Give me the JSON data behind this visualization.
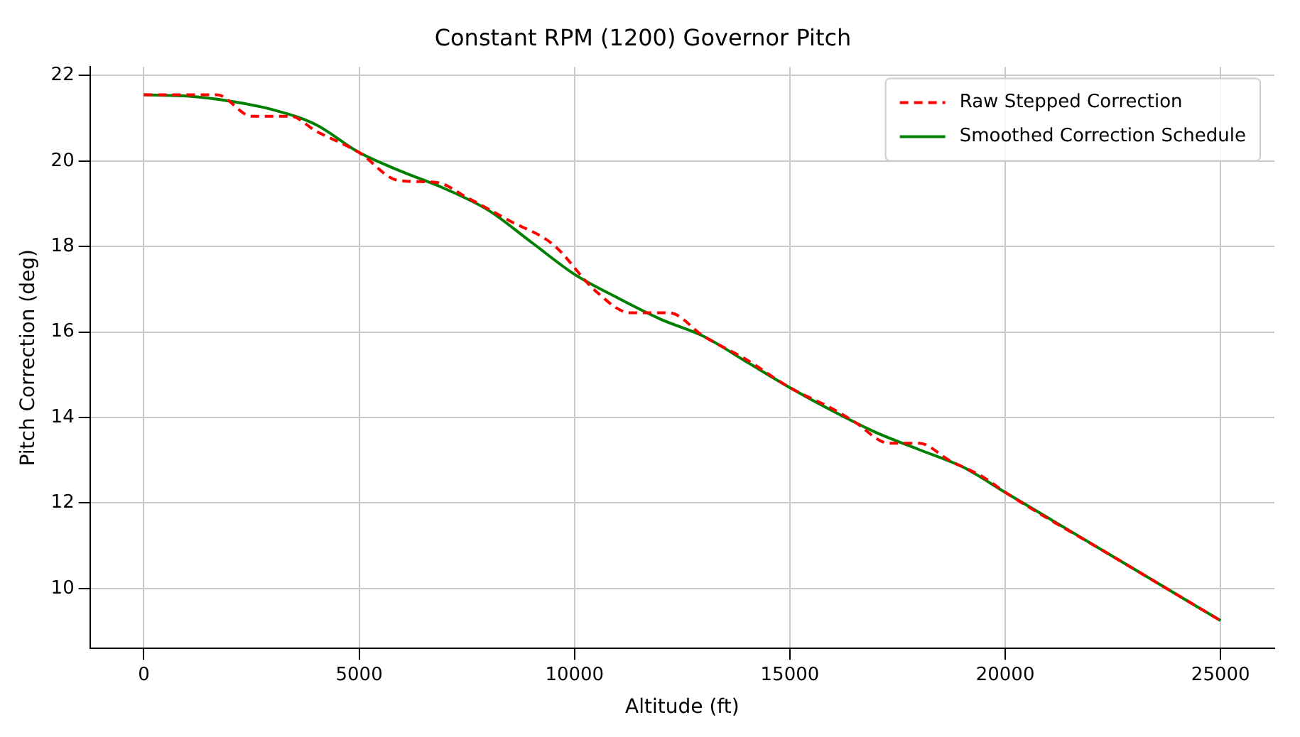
{
  "chart_data": {
    "type": "line",
    "title": "Constant RPM (1200) Governor Pitch",
    "xlabel": "Altitude (ft)",
    "ylabel": "Pitch Correction (deg)",
    "xlim": [
      -1250,
      26250
    ],
    "xticks": [
      0,
      5000,
      10000,
      15000,
      20000,
      25000
    ],
    "ylim": [
      8.6,
      22.2
    ],
    "yticks": [
      10,
      12,
      14,
      16,
      18,
      20,
      22
    ],
    "grid": true,
    "legend": "top right",
    "series": [
      {
        "name": "Raw Stepped Correction",
        "color": "#ff0000",
        "line_style": "dashed",
        "x": [
          0,
          1700,
          2500,
          3400,
          4000,
          5000,
          5900,
          6800,
          7500,
          8500,
          9500,
          10500,
          11300,
          12200,
          13000,
          14000,
          15000,
          16000,
          16500,
          17300,
          18000,
          18700,
          19500,
          20000,
          22500,
          25000
        ],
        "values": [
          21.55,
          21.55,
          21.05,
          21.05,
          20.7,
          20.2,
          19.55,
          19.5,
          19.15,
          18.6,
          18.05,
          16.95,
          16.45,
          16.45,
          15.9,
          15.35,
          14.7,
          14.2,
          13.9,
          13.4,
          13.4,
          13.0,
          12.6,
          12.25,
          10.75,
          9.25
        ]
      },
      {
        "name": "Smoothed Correction Schedule",
        "color": "#008000",
        "line_style": "solid",
        "x": [
          0,
          1000,
          2000,
          3000,
          4000,
          5000,
          6000,
          7000,
          8000,
          9000,
          10000,
          11000,
          12000,
          13000,
          14000,
          15000,
          16000,
          17000,
          18000,
          19000,
          20000,
          21000,
          22000,
          23000,
          24000,
          25000
        ],
        "values": [
          21.55,
          21.52,
          21.4,
          21.2,
          20.85,
          20.2,
          19.75,
          19.35,
          18.85,
          18.1,
          17.35,
          16.8,
          16.3,
          15.9,
          15.3,
          14.7,
          14.15,
          13.65,
          13.25,
          12.85,
          12.25,
          11.65,
          11.05,
          10.45,
          9.85,
          9.25
        ]
      }
    ]
  }
}
